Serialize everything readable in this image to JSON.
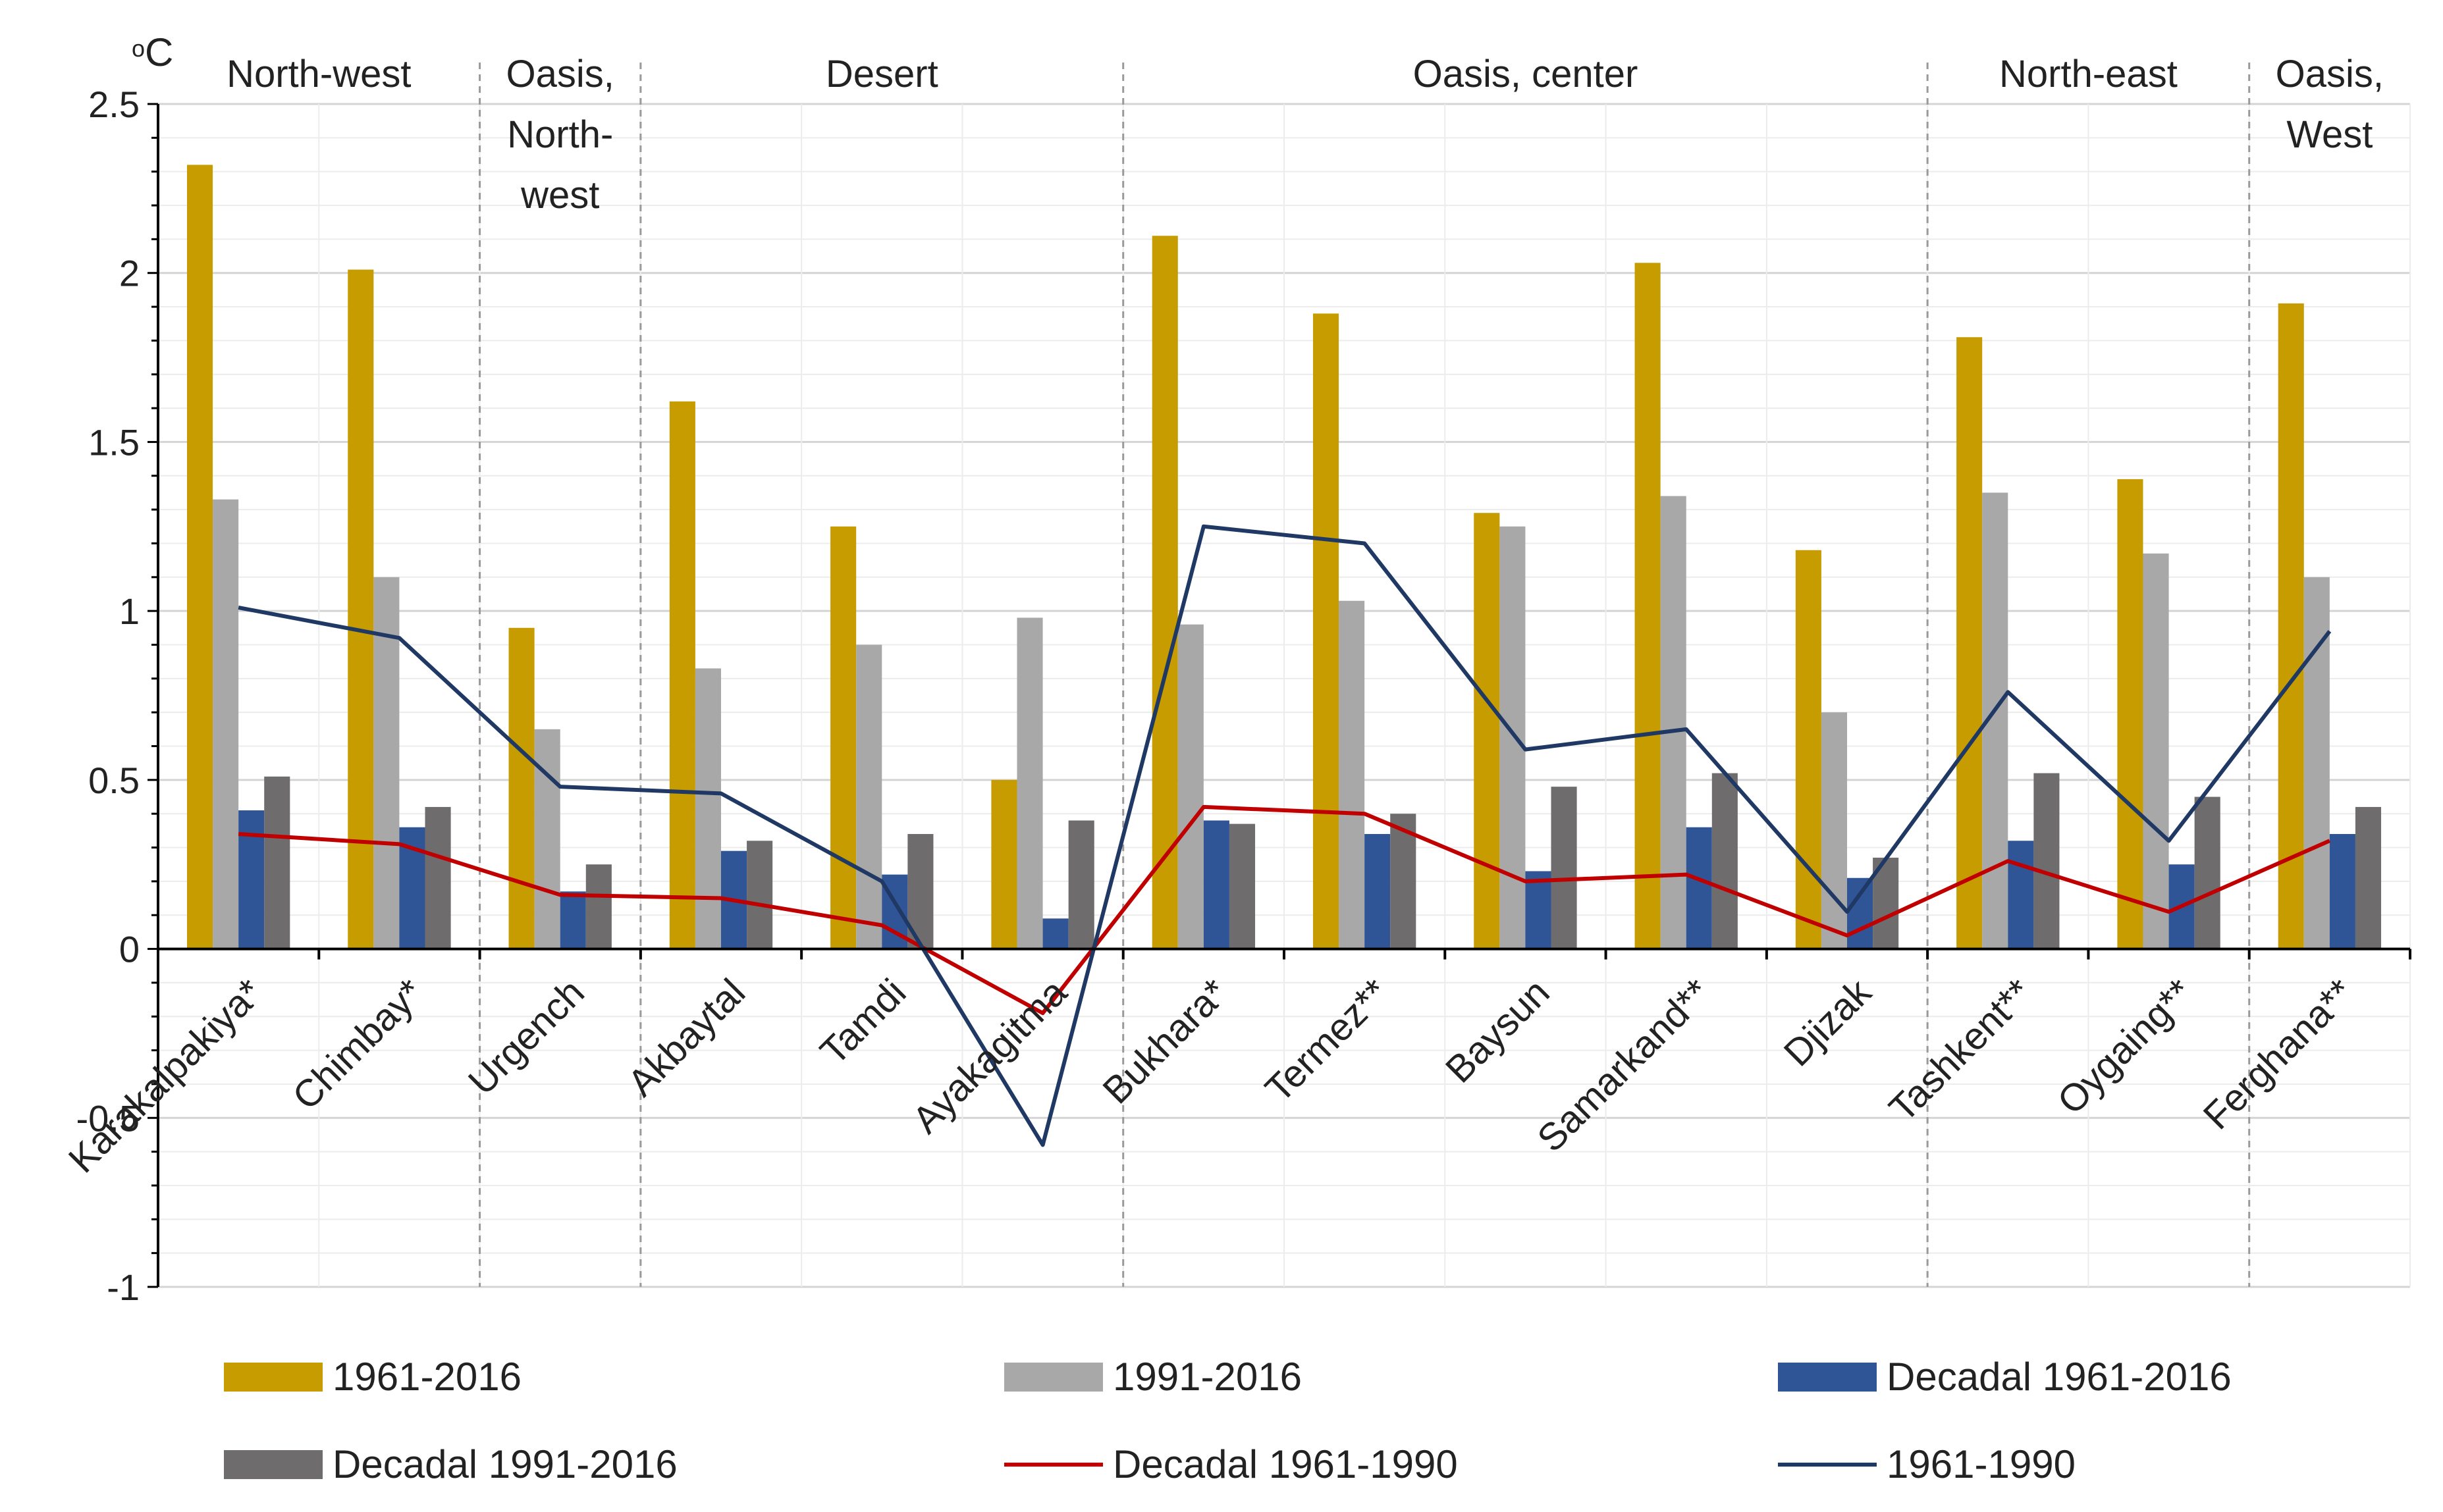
{
  "chart_data": {
    "type": "bar",
    "unit_label": "oC",
    "unit_sup": "o",
    "unit_main": "C",
    "categories": [
      "Karakalpakiya*",
      "Chimbay*",
      "Urgench",
      "Akbaytal",
      "Tamdi",
      "Ayakagitma",
      "Bukhara*",
      "Termez**",
      "Baysun",
      "Samarkand**",
      "Djizak",
      "Tashkent**",
      "Oygaing**",
      "Ferghana**"
    ],
    "ylim": [
      -1,
      2.5
    ],
    "yticks": [
      "-1",
      "-0.5",
      "0",
      "0.5",
      "1",
      "1.5",
      "2",
      "2.5"
    ],
    "series": [
      {
        "name": "1961-2016",
        "kind": "bar",
        "color": "#C69C00",
        "values": [
          2.32,
          2.01,
          0.95,
          1.62,
          1.25,
          0.5,
          2.11,
          1.88,
          1.29,
          2.03,
          1.18,
          1.81,
          1.39,
          1.91
        ]
      },
      {
        "name": "1991-2016",
        "kind": "bar",
        "color": "#A8A8A8",
        "values": [
          1.33,
          1.1,
          0.65,
          0.83,
          0.9,
          0.98,
          0.96,
          1.03,
          1.25,
          1.34,
          0.7,
          1.35,
          1.17,
          1.1
        ]
      },
      {
        "name": "Decadal  1961-2016",
        "kind": "bar",
        "color": "#2F5597",
        "values": [
          0.41,
          0.36,
          0.17,
          0.29,
          0.22,
          0.09,
          0.38,
          0.34,
          0.23,
          0.36,
          0.21,
          0.32,
          0.25,
          0.34
        ]
      },
      {
        "name": "Decadal  1991-2016",
        "kind": "bar",
        "color": "#6E6C6C",
        "values": [
          0.51,
          0.42,
          0.25,
          0.32,
          0.34,
          0.38,
          0.37,
          0.4,
          0.48,
          0.52,
          0.27,
          0.52,
          0.45,
          0.42
        ]
      },
      {
        "name": "Decadal 1961-1990",
        "kind": "line",
        "color": "#C00000",
        "values": [
          0.34,
          0.31,
          0.16,
          0.15,
          0.07,
          -0.19,
          0.42,
          0.4,
          0.2,
          0.22,
          0.04,
          0.26,
          0.11,
          0.32
        ]
      },
      {
        "name": "1961-1990",
        "kind": "line",
        "color": "#1F3864",
        "values": [
          1.01,
          0.92,
          0.48,
          0.46,
          0.2,
          -0.58,
          1.25,
          1.2,
          0.59,
          0.65,
          0.11,
          0.76,
          0.32,
          0.94
        ]
      }
    ],
    "regions": [
      {
        "label_lines": [
          "North-west"
        ],
        "start": 0,
        "end": 2
      },
      {
        "label_lines": [
          "Oasis,",
          "North-",
          "west"
        ],
        "start": 2,
        "end": 3
      },
      {
        "label_lines": [
          "Desert"
        ],
        "start": 3,
        "end": 6
      },
      {
        "label_lines": [
          "Oasis, center"
        ],
        "start": 6,
        "end": 11
      },
      {
        "label_lines": [
          "North-east"
        ],
        "start": 11,
        "end": 13
      },
      {
        "label_lines": [
          "Oasis,",
          "West"
        ],
        "start": 13,
        "end": 14
      }
    ],
    "region_boundaries": [
      2,
      3,
      6,
      11,
      13
    ],
    "legend": {
      "placement": "bottom",
      "items": [
        {
          "name": "1961-2016",
          "kind": "bar",
          "color": "#C69C00"
        },
        {
          "name": "1991-2016",
          "kind": "bar",
          "color": "#A8A8A8"
        },
        {
          "name": "Decadal  1961-2016",
          "kind": "bar",
          "color": "#2F5597"
        },
        {
          "name": "Decadal  1991-2016",
          "kind": "bar",
          "color": "#6E6C6C"
        },
        {
          "name": "Decadal 1961-1990",
          "kind": "line",
          "color": "#C00000"
        },
        {
          "name": "1961-1990",
          "kind": "line",
          "color": "#1F3864"
        }
      ]
    },
    "grid": true
  }
}
